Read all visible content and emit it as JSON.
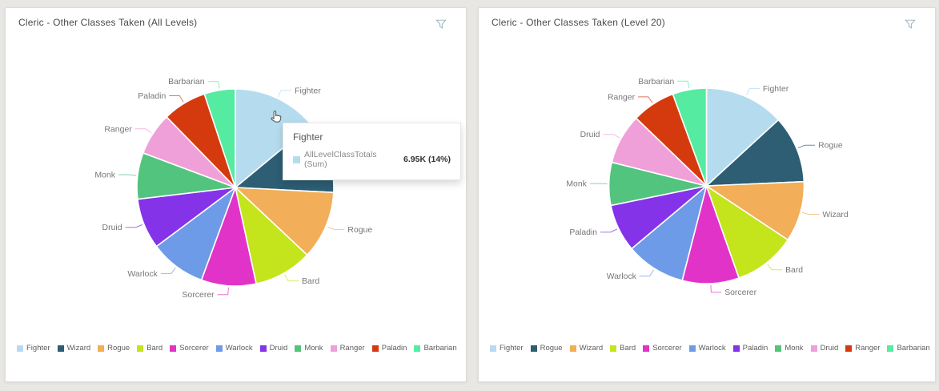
{
  "app": {
    "background_color": "#E9E7E4",
    "card_background": "#FFFFFF"
  },
  "icons": {
    "filter": "funnel-filter-icon",
    "cursor": "hand-pointer-cursor",
    "filter_color": "#93AFBC"
  },
  "palette": {
    "light_blue": "#B5DCEE",
    "dark_teal": "#2D5E73",
    "orange": "#F2AE58",
    "chartreuse": "#C4E41C",
    "magenta": "#E233C8",
    "blue": "#6E9BE8",
    "purple": "#8533E8",
    "green": "#52C47E",
    "pink": "#F0A0D8",
    "red": "#D53A0F",
    "mint": "#55EBA0"
  },
  "cards": [
    {
      "title": "Cleric - Other Classes Taken (All Levels)"
    },
    {
      "title": "Cleric - Other Classes Taken (Level 20)"
    }
  ],
  "tooltip": {
    "title": "Fighter",
    "series_label": "AllLevelClassTotals (Sum)",
    "value": "6.95K (14%)",
    "swatch_color": "#B5DCEE"
  },
  "chart_data": [
    {
      "type": "pie",
      "title": "Cleric - Other Classes Taken (All Levels)",
      "series_label": "AllLevelClassTotals (Sum)",
      "categories": [
        "Fighter",
        "Wizard",
        "Rogue",
        "Bard",
        "Sorcerer",
        "Warlock",
        "Druid",
        "Monk",
        "Ranger",
        "Paladin",
        "Barbarian"
      ],
      "values_pct": [
        14.0,
        11.8,
        11.2,
        9.6,
        9.0,
        9.2,
        8.3,
        7.6,
        7.0,
        7.2,
        5.1
      ],
      "colors": [
        "#B5DCEE",
        "#2D5E73",
        "#F2AE58",
        "#C4E41C",
        "#E233C8",
        "#6E9BE8",
        "#8533E8",
        "#52C47E",
        "#F0A0D8",
        "#D53A0F",
        "#55EBA0"
      ],
      "legend_position": "bottom",
      "start_angle_deg": 0,
      "highlight": {
        "category": "Fighter",
        "value": "6.95K",
        "pct": "14%"
      }
    },
    {
      "type": "pie",
      "title": "Cleric - Other Classes Taken (Level 20)",
      "series_label": "AllLevelClassTotals (Sum)",
      "categories": [
        "Fighter",
        "Rogue",
        "Wizard",
        "Bard",
        "Sorcerer",
        "Warlock",
        "Paladin",
        "Monk",
        "Druid",
        "Ranger",
        "Barbarian"
      ],
      "values_pct": [
        13.2,
        11.1,
        10.0,
        10.3,
        9.4,
        9.9,
        7.9,
        7.1,
        8.3,
        7.2,
        5.6
      ],
      "colors": [
        "#B5DCEE",
        "#2D5E73",
        "#F2AE58",
        "#C4E41C",
        "#E233C8",
        "#6E9BE8",
        "#8533E8",
        "#52C47E",
        "#F0A0D8",
        "#D53A0F",
        "#55EBA0"
      ],
      "legend_position": "bottom",
      "start_angle_deg": 0
    }
  ]
}
